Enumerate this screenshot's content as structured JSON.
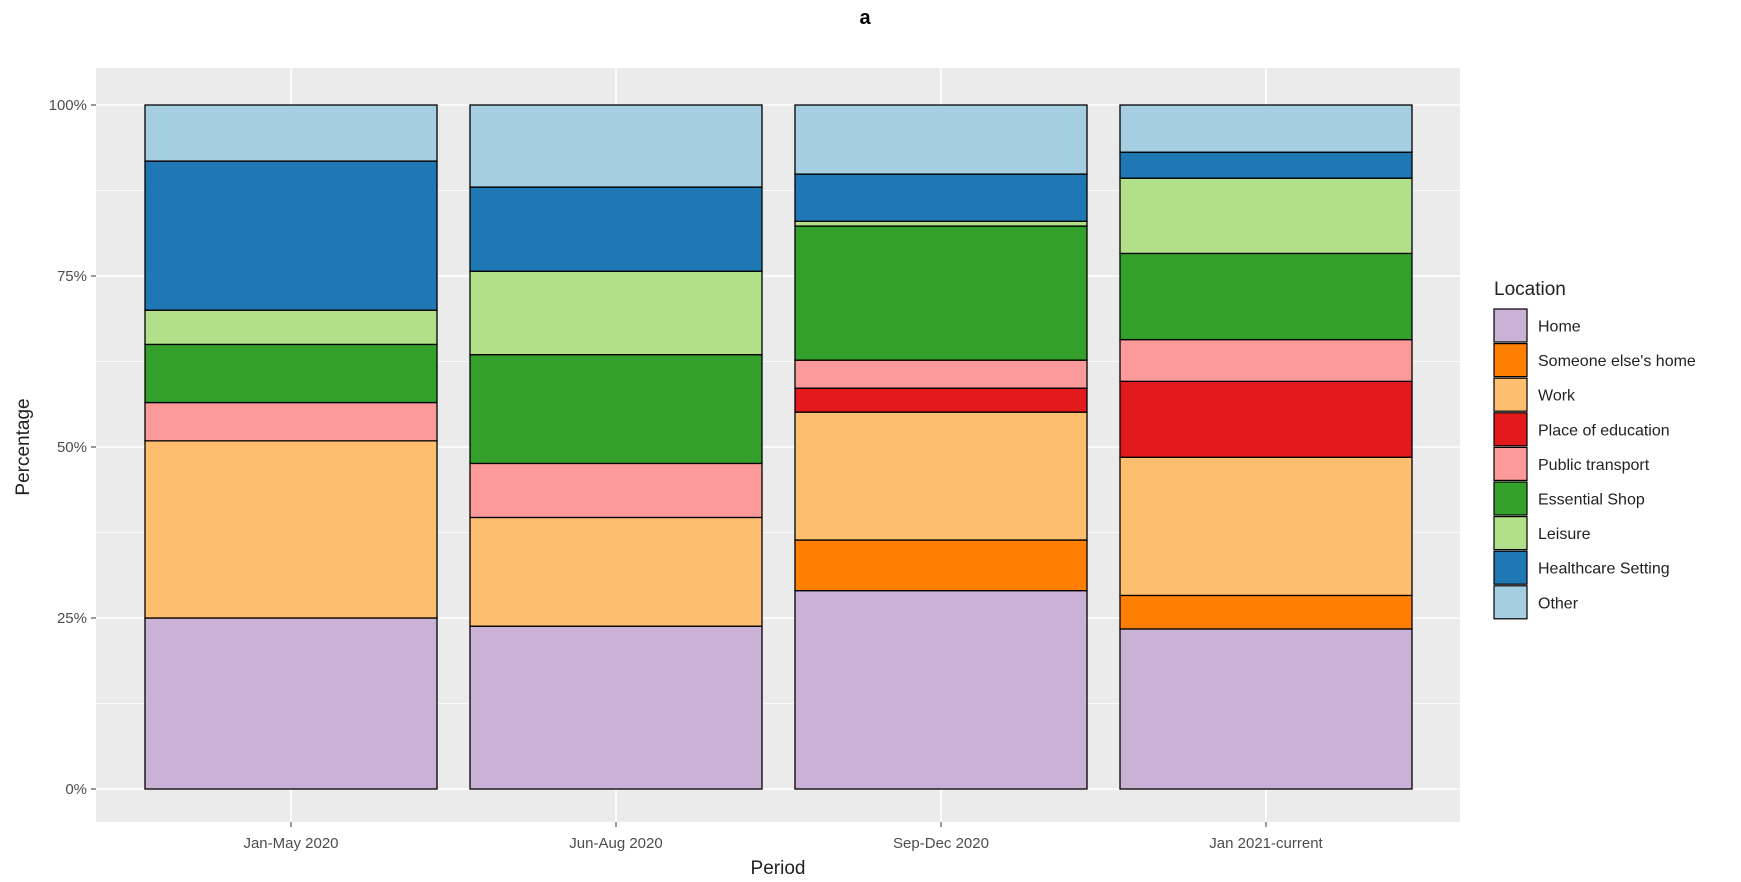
{
  "chart_data": {
    "type": "bar",
    "stacked": true,
    "title": "a",
    "xlabel": "Period",
    "ylabel": "Percentage",
    "ylim": [
      0,
      100
    ],
    "yticks": [
      "0%",
      "25%",
      "50%",
      "75%",
      "100%"
    ],
    "categories": [
      "Jan-May 2020",
      "Jun-Aug 2020",
      "Sep-Dec 2020",
      "Jan 2021-current"
    ],
    "legend_title": "Location",
    "legend_position": "right",
    "series": [
      {
        "name": "Home",
        "color": "#cab2d6",
        "values": [
          25,
          23.8,
          29,
          23.4
        ]
      },
      {
        "name": "Someone else's home",
        "color": "#ff7f00",
        "values": [
          0,
          0,
          7.4,
          4.9
        ]
      },
      {
        "name": "Work",
        "color": "#fdbf6f",
        "values": [
          25.9,
          15.9,
          18.7,
          20.2
        ]
      },
      {
        "name": "Place of education",
        "color": "#e31a1c",
        "values": [
          0,
          0,
          3.5,
          11.1
        ]
      },
      {
        "name": "Public transport",
        "color": "#fb9a99",
        "values": [
          5.6,
          7.9,
          4.1,
          6.1
        ]
      },
      {
        "name": "Essential Shop",
        "color": "#33a02c",
        "values": [
          8.5,
          15.9,
          19.6,
          12.6
        ]
      },
      {
        "name": "Leisure",
        "color": "#b2df8a",
        "values": [
          5,
          12.2,
          0.7,
          11.0
        ]
      },
      {
        "name": "Healthcare Setting",
        "color": "#1f78b4",
        "values": [
          21.8,
          12.3,
          6.9,
          3.8
        ]
      },
      {
        "name": "Other",
        "color": "#a6cee3",
        "values": [
          8.2,
          12.0,
          10.1,
          6.9
        ]
      }
    ]
  }
}
